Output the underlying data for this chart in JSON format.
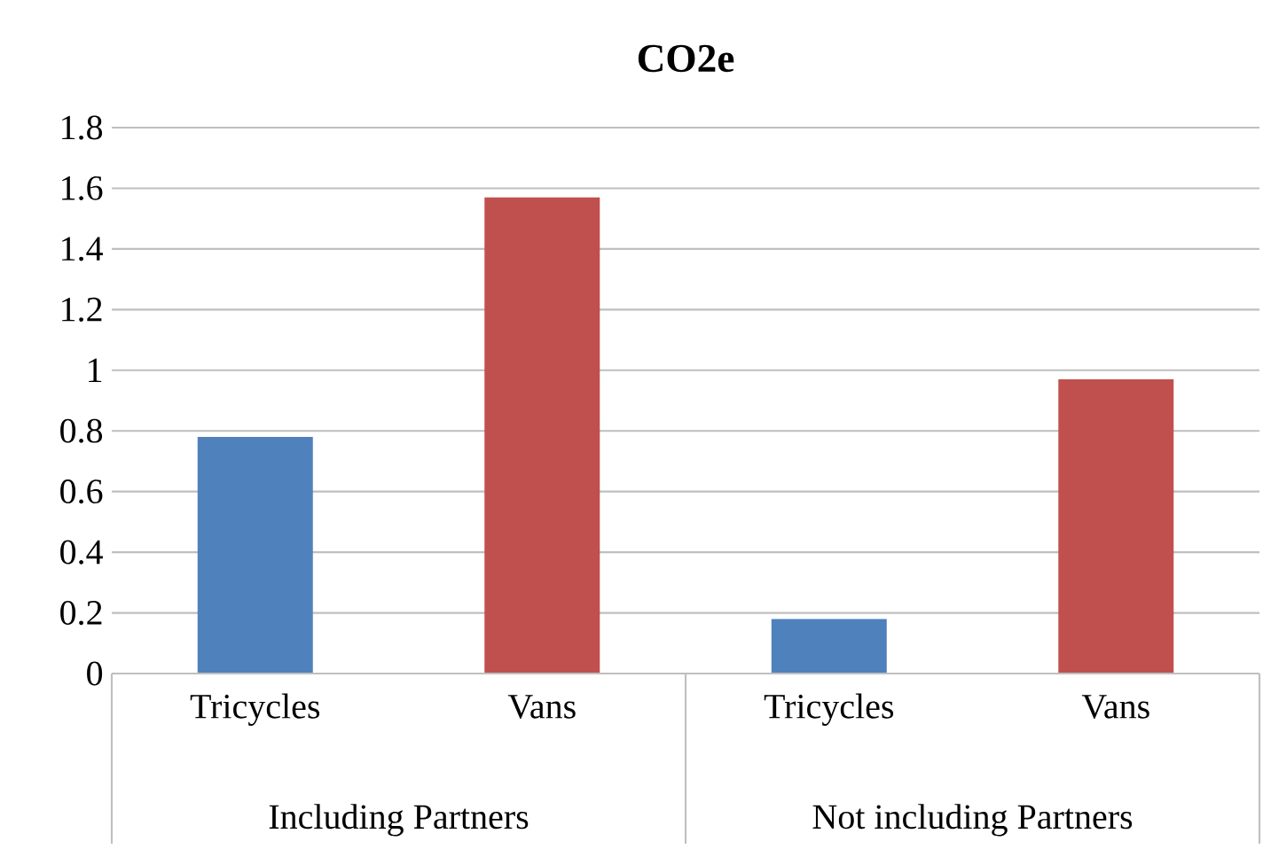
{
  "chart_data": {
    "type": "bar",
    "title": "CO2e",
    "categories": [
      "Tricycles",
      "Vans",
      "Tricycles",
      "Vans"
    ],
    "values": [
      0.78,
      1.57,
      0.18,
      0.97
    ],
    "colors": [
      "#4f81bd",
      "#c0504d",
      "#4f81bd",
      "#c0504d"
    ],
    "annotations": [
      "Including Partners",
      "Not including Partners"
    ],
    "ylim": [
      0,
      1.8
    ],
    "yticks": [
      0,
      0.2,
      0.4,
      0.6,
      0.8,
      1,
      1.2,
      1.4,
      1.6,
      1.8
    ],
    "grid": "y"
  }
}
